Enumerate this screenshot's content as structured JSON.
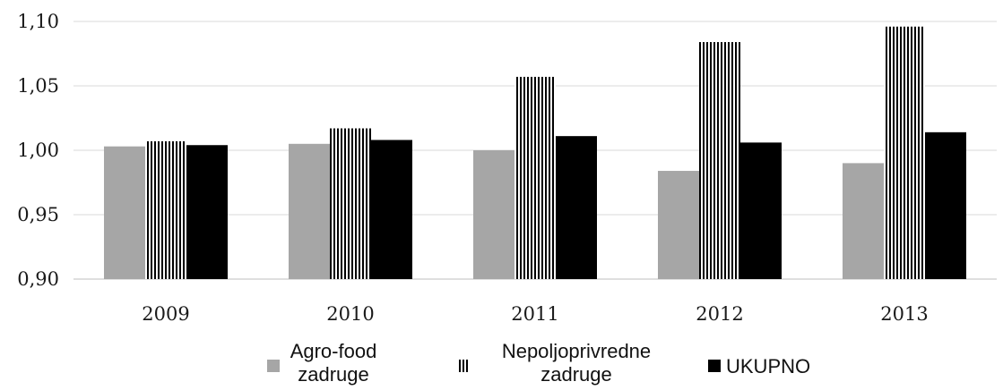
{
  "chart_data": {
    "type": "bar",
    "title": "",
    "xlabel": "",
    "ylabel": "",
    "categories": [
      "2009",
      "2010",
      "2011",
      "2012",
      "2013"
    ],
    "ylim": [
      0.9,
      1.1
    ],
    "yticks": [
      0.9,
      0.95,
      1.0,
      1.05,
      1.1
    ],
    "ytick_labels": [
      "0,90",
      "0,95",
      "1,00",
      "1,05",
      "1,10"
    ],
    "grid": "horizontal",
    "legend_position": "bottom",
    "series": [
      {
        "name": "Agro-food zadruge",
        "legend_lines": [
          "Agro-food",
          "zadruge"
        ],
        "color": "#a6a6a6",
        "fill": "solid",
        "values": [
          1.003,
          1.005,
          1.0,
          0.984,
          0.99
        ]
      },
      {
        "name": "Nepoljoprivredne zadruge",
        "legend_lines": [
          "Nepoljoprivredne",
          "zadruge"
        ],
        "color": "#000000",
        "fill": "vertical-stripes",
        "values": [
          1.007,
          1.017,
          1.057,
          1.084,
          1.096
        ]
      },
      {
        "name": "UKUPNO",
        "legend_lines": [
          "UKUPNO"
        ],
        "color": "#000000",
        "fill": "solid",
        "values": [
          1.004,
          1.008,
          1.011,
          1.006,
          1.014
        ]
      }
    ]
  }
}
